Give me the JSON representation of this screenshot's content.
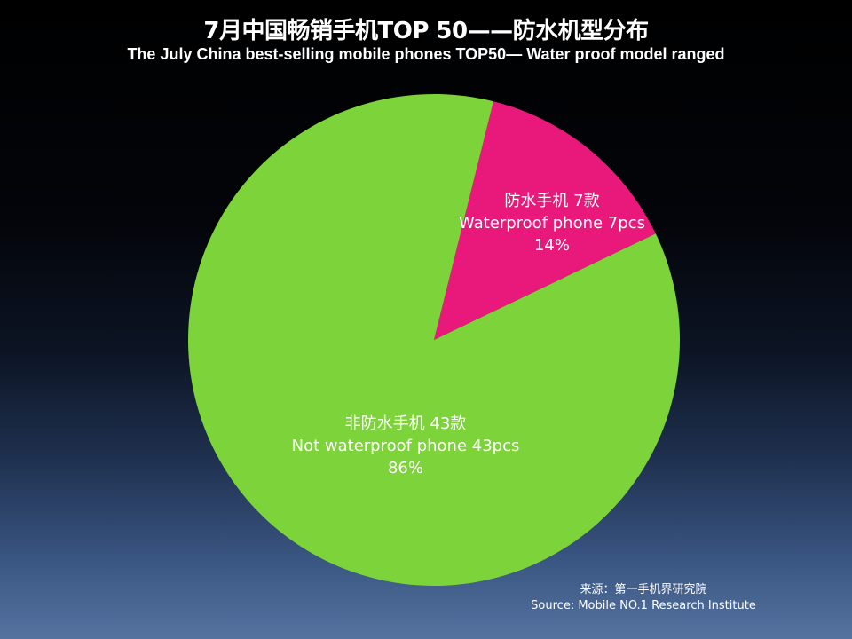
{
  "chart_data": {
    "type": "pie",
    "title": "7月中国畅销手机TOP 50——防水机型分布",
    "subtitle": "The July China best-selling mobile phones TOP50— Water proof model ranged",
    "slices": [
      {
        "label_zh": "防水手机 7款",
        "label_en": "Waterproof phone 7pcs",
        "value": 7,
        "percent_label": "14%",
        "color": "#e8197a"
      },
      {
        "label_zh": "非防水手机 43款",
        "label_en": "Not waterproof phone 43pcs",
        "value": 43,
        "percent_label": "86%",
        "color": "#7dd33a"
      }
    ],
    "start_angle_deg": 14,
    "direction": "clockwise",
    "legend": "none"
  },
  "source": {
    "line_zh": "来源：第一手机界研究院",
    "line_en": "Source: Mobile NO.1 Research Institute"
  }
}
